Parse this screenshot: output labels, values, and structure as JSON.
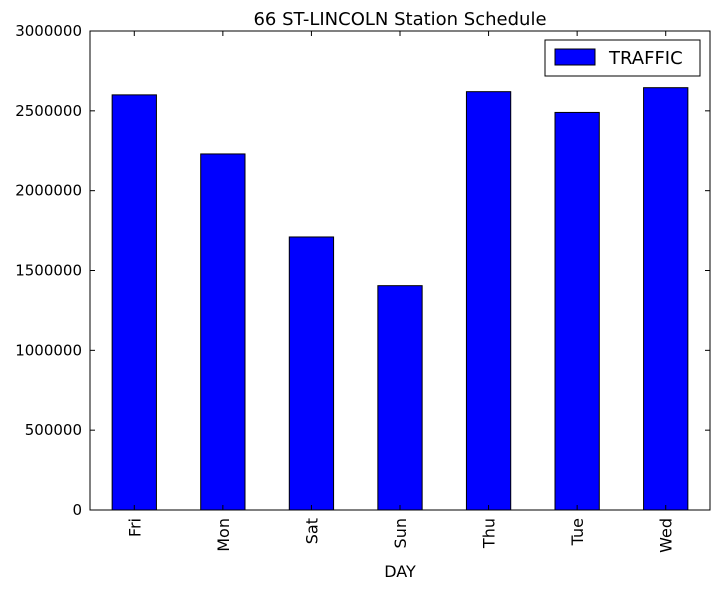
{
  "chart_data": {
    "type": "bar",
    "title": "66 ST-LINCOLN Station Schedule",
    "xlabel": "DAY",
    "ylabel": "",
    "categories": [
      "Fri",
      "Mon",
      "Sat",
      "Sun",
      "Thu",
      "Tue",
      "Wed"
    ],
    "series": [
      {
        "name": "TRAFFIC",
        "values": [
          2600000,
          2230000,
          1710000,
          1405000,
          2620000,
          2490000,
          2645000
        ]
      }
    ],
    "ylim": [
      0,
      3000000
    ],
    "yticks": [
      0,
      500000,
      1000000,
      1500000,
      2000000,
      2500000,
      3000000
    ],
    "ytick_labels": [
      "0",
      "500000",
      "1000000",
      "1500000",
      "2000000",
      "2500000",
      "3000000"
    ],
    "grid": false,
    "legend_position": "top-right",
    "bar_color": "#0000ff",
    "edge_color": "#000000"
  }
}
